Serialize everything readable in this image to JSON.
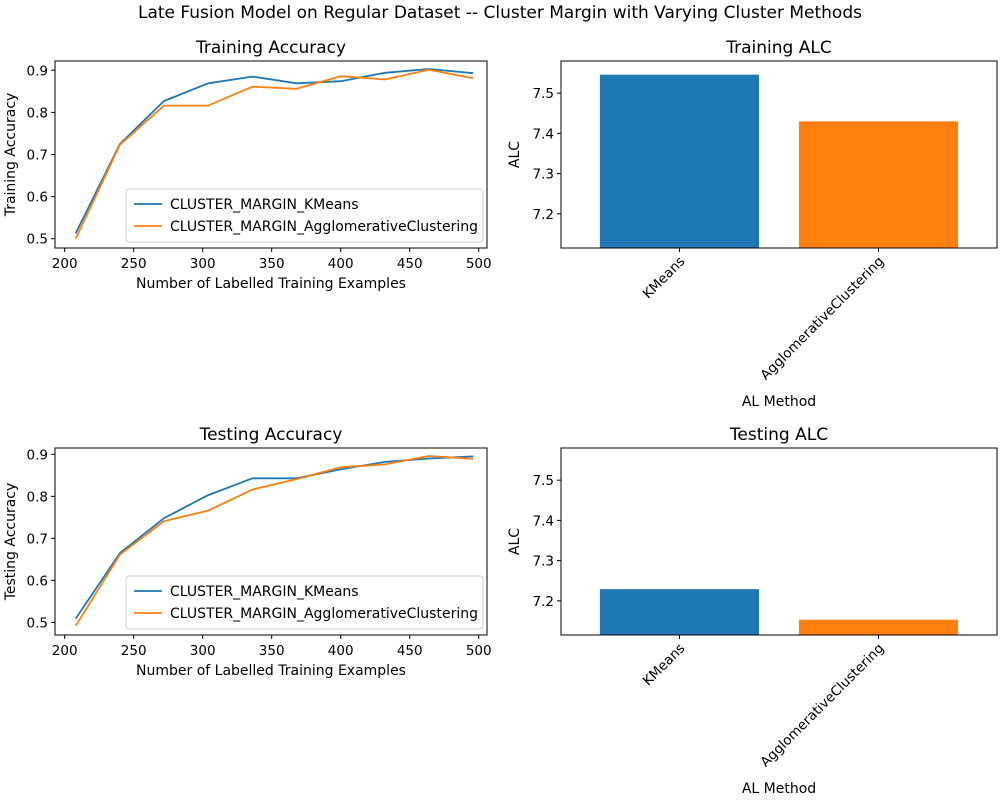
{
  "figure": {
    "suptitle": "Late Fusion Model on Regular Dataset -- Cluster Margin with Varying Cluster Methods"
  },
  "chart_data": [
    {
      "id": "train-acc",
      "type": "line",
      "title": "Training Accuracy",
      "xlabel": "Number of Labelled Training Examples",
      "ylabel": "Training Accuracy",
      "xlim": [
        193,
        506
      ],
      "ylim": [
        0.478,
        0.922
      ],
      "xticks": [
        200,
        250,
        300,
        350,
        400,
        450,
        500
      ],
      "yticks": [
        0.5,
        0.6,
        0.7,
        0.8,
        0.9
      ],
      "ytick_labels": [
        "0.5",
        "0.6",
        "0.7",
        "0.8",
        "0.9"
      ],
      "legend_position": "lower-right",
      "series": [
        {
          "name": "CLUSTER_MARGIN_KMeans",
          "color": "#1f77b4",
          "x": [
            208,
            240,
            272,
            304,
            336,
            368,
            400,
            432,
            464,
            496
          ],
          "y": [
            0.513,
            0.725,
            0.827,
            0.869,
            0.885,
            0.869,
            0.874,
            0.894,
            0.903,
            0.893
          ]
        },
        {
          "name": "CLUSTER_MARGIN_AgglomerativeClustering",
          "color": "#ff7f0e",
          "x": [
            208,
            240,
            272,
            304,
            336,
            368,
            400,
            432,
            464,
            496
          ],
          "y": [
            0.5,
            0.723,
            0.816,
            0.816,
            0.861,
            0.856,
            0.886,
            0.878,
            0.901,
            0.881
          ]
        }
      ]
    },
    {
      "id": "train-alc",
      "type": "bar",
      "title": "Training ALC",
      "xlabel": "AL Method",
      "ylabel": "ALC",
      "ylim": [
        7.115,
        7.58
      ],
      "yticks": [
        7.2,
        7.3,
        7.4,
        7.5
      ],
      "ytick_labels": [
        "7.2",
        "7.3",
        "7.4",
        "7.5"
      ],
      "categories": [
        "KMeans",
        "AgglomerativeClustering"
      ],
      "values": [
        7.546,
        7.43
      ],
      "colors": [
        "#1f77b4",
        "#ff7f0e"
      ]
    },
    {
      "id": "test-acc",
      "type": "line",
      "title": "Testing Accuracy",
      "xlabel": "Number of Labelled Training Examples",
      "ylabel": "Testing Accuracy",
      "xlim": [
        193,
        506
      ],
      "ylim": [
        0.47,
        0.915
      ],
      "xticks": [
        200,
        250,
        300,
        350,
        400,
        450,
        500
      ],
      "yticks": [
        0.5,
        0.6,
        0.7,
        0.8,
        0.9
      ],
      "ytick_labels": [
        "0.5",
        "0.6",
        "0.7",
        "0.8",
        "0.9"
      ],
      "legend_position": "lower-right",
      "series": [
        {
          "name": "CLUSTER_MARGIN_KMeans",
          "color": "#1f77b4",
          "x": [
            208,
            240,
            272,
            304,
            336,
            368,
            400,
            432,
            464,
            496
          ],
          "y": [
            0.509,
            0.665,
            0.748,
            0.803,
            0.843,
            0.843,
            0.864,
            0.882,
            0.89,
            0.895
          ]
        },
        {
          "name": "CLUSTER_MARGIN_AgglomerativeClustering",
          "color": "#ff7f0e",
          "x": [
            208,
            240,
            272,
            304,
            336,
            368,
            400,
            432,
            464,
            496
          ],
          "y": [
            0.492,
            0.661,
            0.741,
            0.766,
            0.816,
            0.841,
            0.869,
            0.876,
            0.896,
            0.889
          ]
        }
      ]
    },
    {
      "id": "test-alc",
      "type": "bar",
      "title": "Testing ALC",
      "xlabel": "AL Method",
      "ylabel": "ALC",
      "ylim": [
        7.115,
        7.58
      ],
      "yticks": [
        7.2,
        7.3,
        7.4,
        7.5
      ],
      "ytick_labels": [
        "7.2",
        "7.3",
        "7.4",
        "7.5"
      ],
      "categories": [
        "KMeans",
        "AgglomerativeClustering"
      ],
      "values": [
        7.229,
        7.153
      ],
      "colors": [
        "#1f77b4",
        "#ff7f0e"
      ]
    }
  ]
}
